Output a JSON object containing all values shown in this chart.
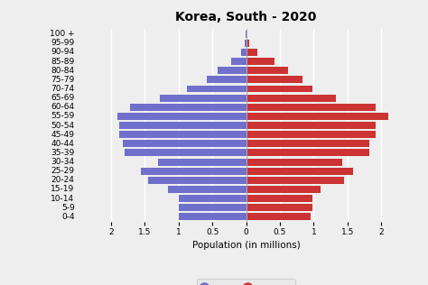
{
  "title": "Korea, South - 2020",
  "xlabel": "Population (in millions)",
  "age_groups": [
    "0-4",
    "5-9",
    "10-14",
    "15-19",
    "20-24",
    "25-29",
    "30-34",
    "35-39",
    "40-44",
    "45-49",
    "50-54",
    "55-59",
    "60-64",
    "65-69",
    "70-74",
    "75-79",
    "80-84",
    "85-89",
    "90-94",
    "95-99",
    "100 +"
  ],
  "male": [
    1.0,
    1.0,
    1.0,
    1.15,
    1.45,
    1.55,
    1.3,
    1.8,
    1.82,
    1.88,
    1.88,
    1.9,
    1.72,
    1.28,
    0.88,
    0.58,
    0.42,
    0.22,
    0.08,
    0.02,
    0.004
  ],
  "female": [
    0.95,
    0.98,
    0.98,
    1.1,
    1.45,
    1.58,
    1.42,
    1.82,
    1.82,
    1.92,
    1.92,
    2.1,
    1.92,
    1.33,
    0.98,
    0.83,
    0.62,
    0.42,
    0.17,
    0.05,
    0.007
  ],
  "male_color": "#7070cc",
  "female_color": "#cc3333",
  "xlim": 2.5,
  "background_color": "#eeeeee",
  "grid_color": "#ffffff",
  "title_fontsize": 10,
  "axis_fontsize": 7.5,
  "tick_fontsize": 6.5
}
